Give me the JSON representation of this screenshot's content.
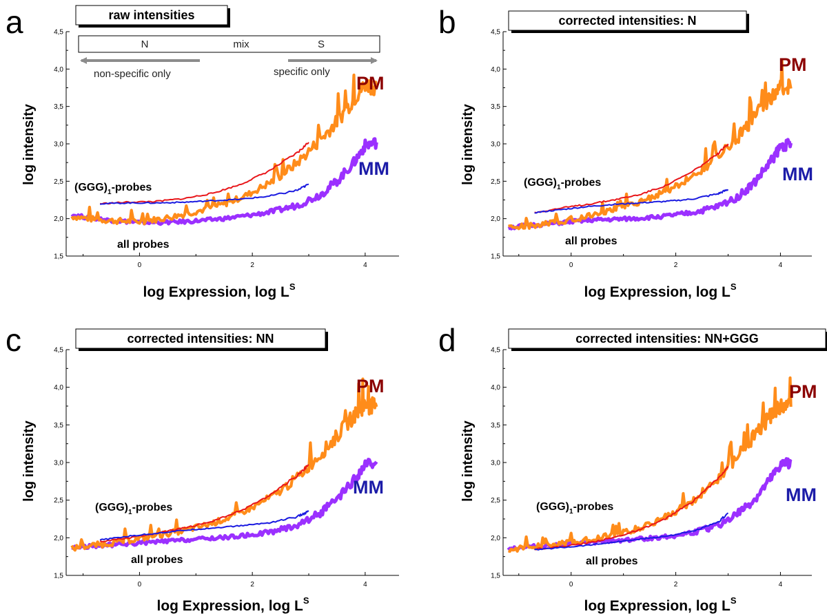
{
  "colors": {
    "pm_all": "#ff8c1a",
    "mm_all": "#9b30ff",
    "pm_ggg": "#e8161a",
    "mm_ggg": "#1a1ae0",
    "pm_label": "#8b0000",
    "mm_label": "#1c1ca8",
    "arrow": "#8c8c8c"
  },
  "labels": {
    "pm": "PM",
    "mm": "MM",
    "ggg_probes_main": "(GGG)",
    "ggg_probes_sub": "1",
    "ggg_probes_suffix": "-probes",
    "all_probes": "all probes",
    "ylabel": "log intensity",
    "xlabel_main": "log Expression, log L",
    "xlabel_sup": "S"
  },
  "regime_scale": {
    "left": "N",
    "mid": "mix",
    "right": "S",
    "left_arrow": "non-specific only",
    "right_arrow": "specific only"
  },
  "chart_data": [
    {
      "panel": "a",
      "type": "line",
      "title": "raw intensities",
      "xlabel": "log Expression, log L^S",
      "ylabel": "log intensity",
      "xlim": [
        -1.3,
        4.6
      ],
      "ylim": [
        1.5,
        4.5
      ],
      "xticks": [
        "0",
        "2",
        "4"
      ],
      "yticks": [
        "1,5",
        "2,0",
        "2,5",
        "3,0",
        "3,5",
        "4,0",
        "4,5"
      ],
      "series": [
        {
          "name": "PM",
          "subset": "all probes",
          "x": [
            -1.2,
            -0.8,
            -0.4,
            0,
            0.4,
            0.8,
            1.2,
            1.6,
            2.0,
            2.4,
            2.8,
            3.2,
            3.5,
            3.8,
            4.0,
            4.2
          ],
          "values": [
            2.03,
            1.99,
            1.97,
            1.96,
            2.0,
            2.06,
            2.13,
            2.22,
            2.35,
            2.52,
            2.75,
            3.05,
            3.3,
            3.6,
            3.8,
            3.76
          ]
        },
        {
          "name": "MM",
          "subset": "all probes",
          "x": [
            -1.2,
            -0.8,
            -0.4,
            0,
            0.4,
            0.8,
            1.2,
            1.6,
            2.0,
            2.4,
            2.8,
            3.2,
            3.5,
            3.8,
            4.0,
            4.2
          ],
          "values": [
            2.05,
            2.0,
            1.97,
            1.95,
            1.95,
            1.96,
            1.98,
            2.01,
            2.05,
            2.1,
            2.18,
            2.32,
            2.5,
            2.75,
            2.98,
            3.02
          ]
        },
        {
          "name": "PM",
          "subset": "(GGG)1-probes",
          "x": [
            -0.7,
            -0.2,
            0.3,
            0.8,
            1.3,
            1.8,
            2.3,
            2.8,
            3.0
          ],
          "values": [
            2.2,
            2.22,
            2.23,
            2.27,
            2.34,
            2.46,
            2.64,
            2.88,
            3.02
          ]
        },
        {
          "name": "MM",
          "subset": "(GGG)1-probes",
          "x": [
            -0.7,
            -0.2,
            0.3,
            0.8,
            1.3,
            1.8,
            2.3,
            2.8,
            3.0
          ],
          "values": [
            2.2,
            2.21,
            2.21,
            2.22,
            2.24,
            2.26,
            2.3,
            2.38,
            2.46
          ]
        }
      ]
    },
    {
      "panel": "b",
      "type": "line",
      "title": "corrected intensities: N",
      "xlabel": "log Expression, log L^S",
      "ylabel": "log intensity",
      "xlim": [
        -1.3,
        4.6
      ],
      "ylim": [
        1.5,
        4.5
      ],
      "xticks": [
        "0",
        "2",
        "4"
      ],
      "yticks": [
        "1,5",
        "2,0",
        "2,5",
        "3,0",
        "3,5",
        "4,0",
        "4,5"
      ],
      "series": [
        {
          "name": "PM",
          "subset": "all probes",
          "x": [
            -1.2,
            -0.8,
            -0.4,
            0,
            0.4,
            0.8,
            1.2,
            1.6,
            2.0,
            2.4,
            2.8,
            3.2,
            3.5,
            3.8,
            4.0,
            4.2
          ],
          "values": [
            1.88,
            1.9,
            1.94,
            1.99,
            2.05,
            2.12,
            2.2,
            2.3,
            2.43,
            2.6,
            2.82,
            3.1,
            3.35,
            3.62,
            3.76,
            3.74
          ]
        },
        {
          "name": "MM",
          "subset": "all probes",
          "x": [
            -1.2,
            -0.8,
            -0.4,
            0,
            0.4,
            0.8,
            1.2,
            1.6,
            2.0,
            2.4,
            2.8,
            3.2,
            3.5,
            3.8,
            4.0,
            4.2
          ],
          "values": [
            1.88,
            1.91,
            1.93,
            1.96,
            1.98,
            1.99,
            2.0,
            2.02,
            2.05,
            2.09,
            2.16,
            2.3,
            2.48,
            2.75,
            2.96,
            3.01
          ]
        },
        {
          "name": "PM",
          "subset": "(GGG)1-probes",
          "x": [
            -0.7,
            -0.2,
            0.3,
            0.8,
            1.3,
            1.8,
            2.3,
            2.8,
            3.0
          ],
          "values": [
            2.08,
            2.14,
            2.19,
            2.25,
            2.32,
            2.44,
            2.62,
            2.86,
            3.0
          ]
        },
        {
          "name": "MM",
          "subset": "(GGG)1-probes",
          "x": [
            -0.7,
            -0.2,
            0.3,
            0.8,
            1.3,
            1.8,
            2.3,
            2.8,
            3.0
          ],
          "values": [
            2.08,
            2.12,
            2.16,
            2.19,
            2.21,
            2.23,
            2.26,
            2.33,
            2.39
          ]
        }
      ]
    },
    {
      "panel": "c",
      "type": "line",
      "title": "corrected intensities: NN",
      "xlabel": "log Expression, log L^S",
      "ylabel": "log intensity",
      "xlim": [
        -1.3,
        4.6
      ],
      "ylim": [
        1.5,
        4.5
      ],
      "xticks": [
        "0",
        "2",
        "4"
      ],
      "yticks": [
        "1,5",
        "2,0",
        "2,5",
        "3,0",
        "3,5",
        "4,0",
        "4,5"
      ],
      "series": [
        {
          "name": "PM",
          "subset": "all probes",
          "x": [
            -1.2,
            -0.8,
            -0.4,
            0,
            0.4,
            0.8,
            1.2,
            1.6,
            2.0,
            2.4,
            2.8,
            3.2,
            3.5,
            3.8,
            4.0,
            4.2
          ],
          "values": [
            1.86,
            1.9,
            1.94,
            1.99,
            2.04,
            2.1,
            2.17,
            2.27,
            2.4,
            2.57,
            2.8,
            3.1,
            3.35,
            3.62,
            3.76,
            3.74
          ]
        },
        {
          "name": "MM",
          "subset": "all probes",
          "x": [
            -1.2,
            -0.8,
            -0.4,
            0,
            0.4,
            0.8,
            1.2,
            1.6,
            2.0,
            2.4,
            2.8,
            3.2,
            3.5,
            3.8,
            4.0,
            4.2
          ],
          "values": [
            1.87,
            1.89,
            1.91,
            1.93,
            1.95,
            1.97,
            1.99,
            2.01,
            2.04,
            2.09,
            2.17,
            2.33,
            2.5,
            2.76,
            2.96,
            3.01
          ]
        },
        {
          "name": "PM",
          "subset": "(GGG)1-probes",
          "x": [
            -0.7,
            -0.2,
            0.3,
            0.8,
            1.3,
            1.8,
            2.3,
            2.8,
            3.0
          ],
          "values": [
            1.95,
            2.0,
            2.06,
            2.13,
            2.22,
            2.36,
            2.56,
            2.83,
            2.97
          ]
        },
        {
          "name": "MM",
          "subset": "(GGG)1-probes",
          "x": [
            -0.7,
            -0.2,
            0.3,
            0.8,
            1.3,
            1.8,
            2.3,
            2.8,
            3.0
          ],
          "values": [
            1.97,
            2.02,
            2.06,
            2.1,
            2.13,
            2.16,
            2.2,
            2.28,
            2.35
          ]
        }
      ]
    },
    {
      "panel": "d",
      "type": "line",
      "title": "corrected intensities: NN+GGG",
      "xlabel": "log Expression, log L^S",
      "ylabel": "log intensity",
      "xlim": [
        -1.3,
        4.6
      ],
      "ylim": [
        1.5,
        4.5
      ],
      "xticks": [
        "0",
        "2",
        "4"
      ],
      "yticks": [
        "1,5",
        "2,0",
        "2,5",
        "3,0",
        "3,5",
        "4,0",
        "4,5"
      ],
      "series": [
        {
          "name": "PM",
          "subset": "all probes",
          "x": [
            -1.2,
            -0.8,
            -0.4,
            0,
            0.4,
            0.8,
            1.2,
            1.6,
            2.0,
            2.4,
            2.8,
            3.2,
            3.5,
            3.8,
            4.0,
            4.2
          ],
          "values": [
            1.85,
            1.87,
            1.9,
            1.94,
            1.99,
            2.04,
            2.11,
            2.21,
            2.35,
            2.53,
            2.78,
            3.1,
            3.35,
            3.62,
            3.76,
            3.74
          ]
        },
        {
          "name": "MM",
          "subset": "all probes",
          "x": [
            -1.2,
            -0.8,
            -0.4,
            0,
            0.4,
            0.8,
            1.2,
            1.6,
            2.0,
            2.4,
            2.8,
            3.2,
            3.5,
            3.8,
            4.0,
            4.2
          ],
          "values": [
            1.86,
            1.88,
            1.9,
            1.92,
            1.94,
            1.96,
            1.98,
            2.0,
            2.03,
            2.08,
            2.16,
            2.33,
            2.5,
            2.76,
            2.96,
            3.01
          ]
        },
        {
          "name": "PM",
          "subset": "(GGG)1-probes",
          "x": [
            -0.7,
            -0.2,
            0.3,
            0.8,
            1.3,
            1.8,
            2.3,
            2.8,
            3.0
          ],
          "values": [
            1.85,
            1.88,
            1.93,
            2.0,
            2.1,
            2.25,
            2.47,
            2.78,
            2.95
          ]
        },
        {
          "name": "MM",
          "subset": "(GGG)1-probes",
          "x": [
            -0.7,
            -0.2,
            0.3,
            0.8,
            1.3,
            1.8,
            2.3,
            2.8,
            3.0
          ],
          "values": [
            1.84,
            1.87,
            1.9,
            1.94,
            1.98,
            2.02,
            2.08,
            2.2,
            2.33
          ]
        }
      ]
    }
  ]
}
